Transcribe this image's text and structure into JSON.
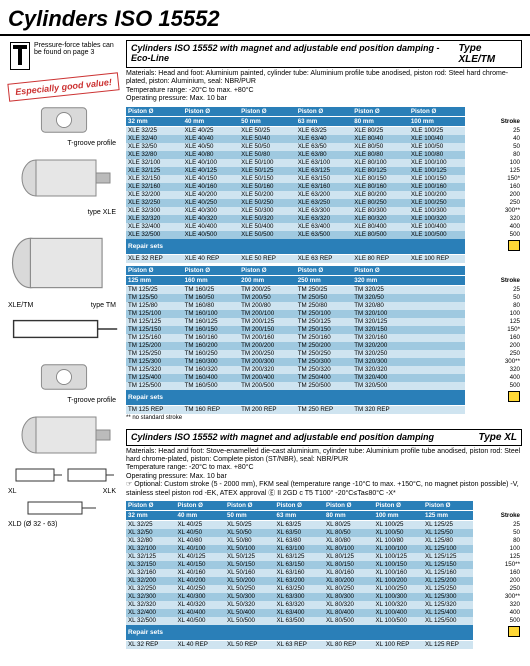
{
  "title": "Cylinders ISO 15552",
  "notice": "Pressure-force tables can be found on page 3",
  "badge": "Especially good value!",
  "captions": {
    "tgroove": "T-groove profile",
    "xle": "type XLE",
    "xletm": "XLE/TM",
    "tm": "type TM",
    "xl": "XL",
    "xlk": "XLK",
    "xld": "XLD (Ø 32 - 63)"
  },
  "section1": {
    "headerTitle": "Cylinders ISO 15552 with magnet and adjustable end position damping - Eco-Line",
    "headerType": "Type XLE/TM",
    "specs": "Materials: Head and foot: Aluminium painted, cylinder tube: Aluminium profile tube anodised, piston rod: Steel hard chrome-plated, piston: Aluminium, seal: NBR/PUR",
    "tempRange": "Temperature range: -20°C to max. +80°C",
    "opPressure": "Operating pressure: Max. 10 bar",
    "cols": [
      "Piston Ø",
      "Piston Ø",
      "Piston Ø",
      "Piston Ø",
      "Piston Ø",
      "Piston Ø",
      ""
    ],
    "sizes": [
      "32 mm",
      "40 mm",
      "50 mm",
      "63 mm",
      "80 mm",
      "100 mm",
      "Stroke"
    ],
    "rows": [
      [
        "XLE 32/25",
        "XLE 40/25",
        "XLE 50/25",
        "XLE 63/25",
        "XLE 80/25",
        "XLE 100/25",
        "25"
      ],
      [
        "XLE 32/40",
        "XLE 40/40",
        "XLE 50/40",
        "XLE 63/40",
        "XLE 80/40",
        "XLE 100/40",
        "40"
      ],
      [
        "XLE 32/50",
        "XLE 40/50",
        "XLE 50/50",
        "XLE 63/50",
        "XLE 80/50",
        "XLE 100/50",
        "50"
      ],
      [
        "XLE 32/80",
        "XLE 40/80",
        "XLE 50/80",
        "XLE 63/80",
        "XLE 80/80",
        "XLE 100/80",
        "80"
      ],
      [
        "XLE 32/100",
        "XLE 40/100",
        "XLE 50/100",
        "XLE 63/100",
        "XLE 80/100",
        "XLE 100/100",
        "100"
      ],
      [
        "XLE 32/125",
        "XLE 40/125",
        "XLE 50/125",
        "XLE 63/125",
        "XLE 80/125",
        "XLE 100/125",
        "125"
      ],
      [
        "XLE 32/150",
        "XLE 40/150",
        "XLE 50/150",
        "XLE 63/150",
        "XLE 80/150",
        "XLE 100/150",
        "150*"
      ],
      [
        "XLE 32/160",
        "XLE 40/160",
        "XLE 50/160",
        "XLE 63/160",
        "XLE 80/160",
        "XLE 100/160",
        "160"
      ],
      [
        "XLE 32/200",
        "XLE 40/200",
        "XLE 50/200",
        "XLE 63/200",
        "XLE 80/200",
        "XLE 100/200",
        "200"
      ],
      [
        "XLE 32/250",
        "XLE 40/250",
        "XLE 50/250",
        "XLE 63/250",
        "XLE 80/250",
        "XLE 100/250",
        "250"
      ],
      [
        "XLE 32/300",
        "XLE 40/300",
        "XLE 50/300",
        "XLE 63/300",
        "XLE 80/300",
        "XLE 100/300",
        "300**"
      ],
      [
        "XLE 32/320",
        "XLE 40/320",
        "XLE 50/320",
        "XLE 63/320",
        "XLE 80/320",
        "XLE 100/320",
        "320"
      ],
      [
        "XLE 32/400",
        "XLE 40/400",
        "XLE 50/400",
        "XLE 63/400",
        "XLE 80/400",
        "XLE 100/400",
        "400"
      ],
      [
        "XLE 32/500",
        "XLE 40/500",
        "XLE 50/500",
        "XLE 63/500",
        "XLE 80/500",
        "XLE 100/500",
        "500"
      ]
    ],
    "repairLabel": "Repair sets",
    "repair": [
      "XLE 32 REP",
      "XLE 40 REP",
      "XLE 50 REP",
      "XLE 63 REP",
      "XLE 80 REP",
      "XLE 100 REP"
    ],
    "cols2": [
      "Piston Ø",
      "Piston Ø",
      "Piston Ø",
      "Piston Ø",
      "Piston Ø",
      "",
      ""
    ],
    "sizes2": [
      "125 mm",
      "160 mm",
      "200 mm",
      "250 mm",
      "320 mm",
      "",
      "Stroke"
    ],
    "rows2": [
      [
        "TM 125/25",
        "TM 160/25",
        "TM 200/25",
        "TM 250/25",
        "TM 320/25",
        "",
        "25"
      ],
      [
        "TM 125/50",
        "TM 160/50",
        "TM 200/50",
        "TM 250/50",
        "TM 320/50",
        "",
        "50"
      ],
      [
        "TM 125/80",
        "TM 160/80",
        "TM 200/80",
        "TM 250/80",
        "TM 320/80",
        "",
        "80"
      ],
      [
        "TM 125/100",
        "TM 160/100",
        "TM 200/100",
        "TM 250/100",
        "TM 320/100",
        "",
        "100"
      ],
      [
        "TM 125/125",
        "TM 160/125",
        "TM 200/125",
        "TM 250/125",
        "TM 320/125",
        "",
        "125"
      ],
      [
        "TM 125/150",
        "TM 160/150",
        "TM 200/150",
        "TM 250/150",
        "TM 320/150",
        "",
        "150*"
      ],
      [
        "TM 125/160",
        "TM 160/160",
        "TM 200/160",
        "TM 250/160",
        "TM 320/160",
        "",
        "160"
      ],
      [
        "TM 125/200",
        "TM 160/200",
        "TM 200/200",
        "TM 250/200",
        "TM 320/200",
        "",
        "200"
      ],
      [
        "TM 125/250",
        "TM 160/250",
        "TM 200/250",
        "TM 250/250",
        "TM 320/250",
        "",
        "250"
      ],
      [
        "TM 125/300",
        "TM 160/300",
        "TM 200/300",
        "TM 250/300",
        "TM 320/300",
        "",
        "300**"
      ],
      [
        "TM 125/320",
        "TM 160/320",
        "TM 200/320",
        "TM 250/320",
        "TM 320/320",
        "",
        "320"
      ],
      [
        "TM 125/400",
        "TM 160/400",
        "TM 200/400",
        "TM 250/400",
        "TM 320/400",
        "",
        "400"
      ],
      [
        "TM 125/500",
        "TM 160/500",
        "TM 200/500",
        "TM 250/500",
        "TM 320/500",
        "",
        "500"
      ]
    ],
    "repair2": [
      "TM 125 REP",
      "TM 160 REP",
      "TM 200 REP",
      "TM 250 REP",
      "TM 320 REP"
    ],
    "footnote": "** no standard stroke"
  },
  "section2": {
    "headerTitle": "Cylinders ISO 15552 with magnet and adjustable end position damping",
    "headerType": "Type XL",
    "specs": "Materials: Head and foot: Stove-enamelled die-cast aluminium, cylinder tube: Aluminium profile tube anodised, piston rod: Steel hard chrome-plated, piston: Complete piston (ST/NBR), seal: NBR/PUR",
    "tempRange": "Temperature range: -20°C to max. +80°C",
    "opPressure": "Operating pressure: Max. 10 bar",
    "optional": "☞ Optional: Custom stroke (5 - 2000 mm), FKM seal (temperature range -10°C to max. +150°C, no magnet piston possible) -V, stainless steel piston rod -EK, ATEX approval Ⓔ II 2GD c T5 T100° -20°C≤Ta≤80°C -X*",
    "cols": [
      "Piston Ø",
      "Piston Ø",
      "Piston Ø",
      "Piston Ø",
      "Piston Ø",
      "Piston Ø",
      "Piston Ø",
      ""
    ],
    "sizes": [
      "32 mm",
      "40 mm",
      "50 mm",
      "63 mm",
      "80 mm",
      "100 mm",
      "125 mm",
      "Stroke"
    ],
    "rows": [
      [
        "XL 32/25",
        "XL 40/25",
        "XL 50/25",
        "XL 63/25",
        "XL 80/25",
        "XL 100/25",
        "XL 125/25",
        "25"
      ],
      [
        "XL 32/50",
        "XL 40/50",
        "XL 50/50",
        "XL 63/50",
        "XL 80/50",
        "XL 100/50",
        "XL 125/50",
        "50"
      ],
      [
        "XL 32/80",
        "XL 40/80",
        "XL 50/80",
        "XL 63/80",
        "XL 80/80",
        "XL 100/80",
        "XL 125/80",
        "80"
      ],
      [
        "XL 32/100",
        "XL 40/100",
        "XL 50/100",
        "XL 63/100",
        "XL 80/100",
        "XL 100/100",
        "XL 125/100",
        "100"
      ],
      [
        "XL 32/125",
        "XL 40/125",
        "XL 50/125",
        "XL 63/125",
        "XL 80/125",
        "XL 100/125",
        "XL 125/125",
        "125"
      ],
      [
        "XL 32/150",
        "XL 40/150",
        "XL 50/150",
        "XL 63/150",
        "XL 80/150",
        "XL 100/150",
        "XL 125/150",
        "150**"
      ],
      [
        "XL 32/160",
        "XL 40/160",
        "XL 50/160",
        "XL 63/160",
        "XL 80/160",
        "XL 100/160",
        "XL 125/160",
        "160"
      ],
      [
        "XL 32/200",
        "XL 40/200",
        "XL 50/200",
        "XL 63/200",
        "XL 80/200",
        "XL 100/200",
        "XL 125/200",
        "200"
      ],
      [
        "XL 32/250",
        "XL 40/250",
        "XL 50/250",
        "XL 63/250",
        "XL 80/250",
        "XL 100/250",
        "XL 125/250",
        "250"
      ],
      [
        "XL 32/300",
        "XL 40/300",
        "XL 50/300",
        "XL 63/300",
        "XL 80/300",
        "XL 100/300",
        "XL 125/300",
        "300**"
      ],
      [
        "XL 32/320",
        "XL 40/320",
        "XL 50/320",
        "XL 63/320",
        "XL 80/320",
        "XL 100/320",
        "XL 125/320",
        "320"
      ],
      [
        "XL 32/400",
        "XL 40/400",
        "XL 50/400",
        "XL 63/400",
        "XL 80/400",
        "XL 100/400",
        "XL 125/400",
        "400"
      ],
      [
        "XL 32/500",
        "XL 40/500",
        "XL 50/500",
        "XL 63/500",
        "XL 80/500",
        "XL 100/500",
        "XL 125/500",
        "500"
      ]
    ],
    "repairLabel": "Repair sets",
    "repair": [
      "XL 32 REP",
      "XL 40 REP",
      "XL 50 REP",
      "XL 63 REP",
      "XL 80 REP",
      "XL 100 REP",
      "XL 125 REP"
    ]
  },
  "colors": {
    "headerBlue": "#2a7fb8",
    "rowLight": "#cfe4f0",
    "rowDark": "#9fc9e0"
  }
}
